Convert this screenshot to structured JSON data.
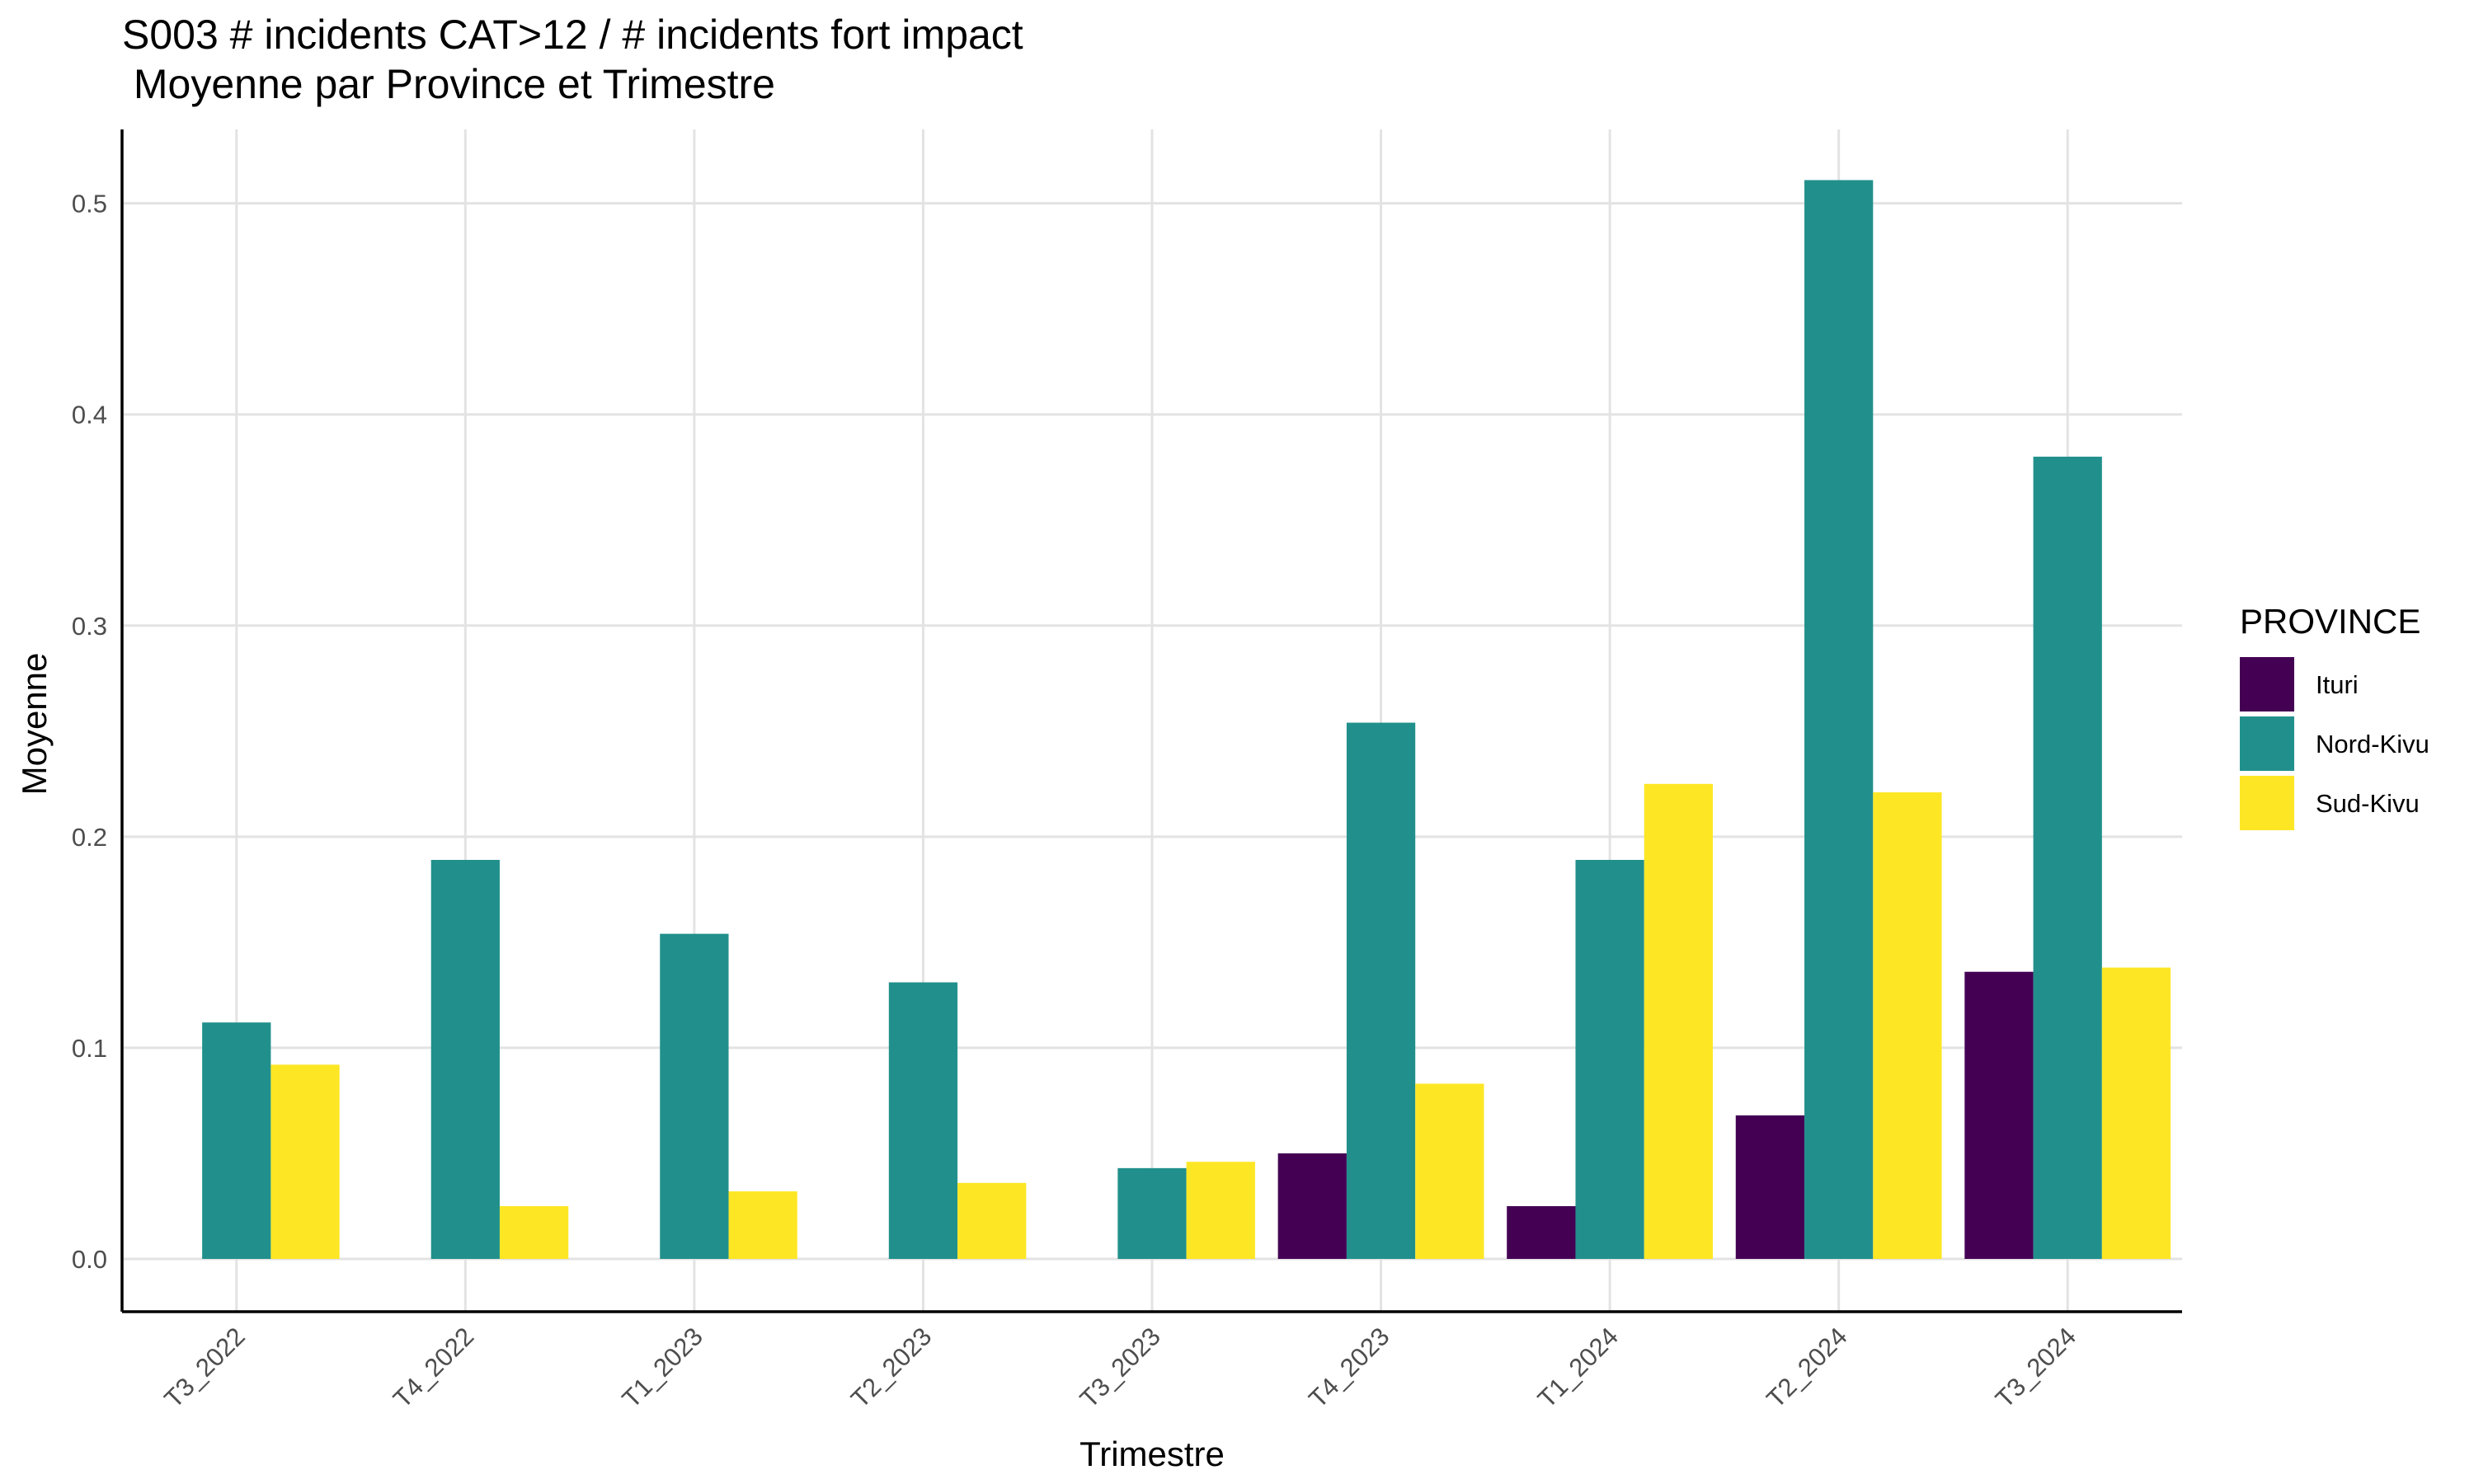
{
  "chart_data": {
    "type": "bar",
    "title": "S003 # incidents CAT>12 / # incidents fort impact",
    "subtitle": " Moyenne par Province et Trimestre",
    "xlabel": "Trimestre",
    "ylabel": "Moyenne",
    "categories": [
      "T3_2022",
      "T4_2022",
      "T1_2023",
      "T2_2023",
      "T3_2023",
      "T4_2023",
      "T1_2024",
      "T2_2024",
      "T3_2024"
    ],
    "ylim": [
      -0.025,
      0.535
    ],
    "yticks": [
      0.0,
      0.1,
      0.2,
      0.3,
      0.4,
      0.5
    ],
    "ytick_labels": [
      "0.0",
      "0.1",
      "0.2",
      "0.3",
      "0.4",
      "0.5"
    ],
    "grid": true,
    "legend": {
      "title": "PROVINCE",
      "position": "right"
    },
    "series": [
      {
        "name": "Ituri",
        "color": "#440154",
        "values": [
          null,
          null,
          null,
          null,
          null,
          0.05,
          0.025,
          0.068,
          0.136
        ]
      },
      {
        "name": "Nord-Kivu",
        "color": "#21908C",
        "values": [
          0.112,
          0.189,
          0.154,
          0.131,
          0.043,
          0.254,
          0.189,
          0.511,
          0.38
        ]
      },
      {
        "name": "Sud-Kivu",
        "color": "#FDE725",
        "values": [
          0.092,
          0.025,
          0.032,
          0.036,
          0.046,
          0.083,
          0.225,
          0.221,
          0.138
        ]
      }
    ]
  }
}
